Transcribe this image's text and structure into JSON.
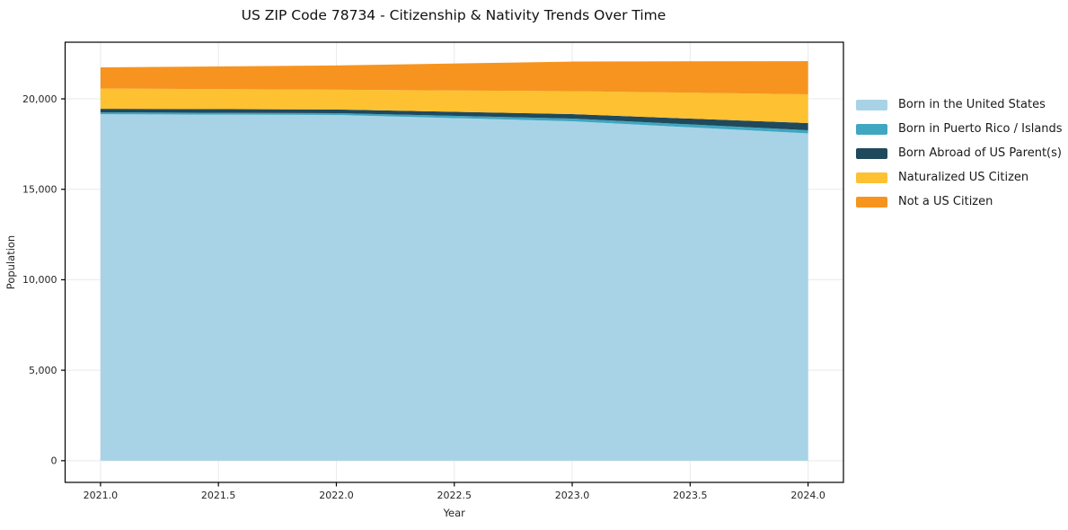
{
  "figure": {
    "title": "US ZIP Code 78734 - Citizenship & Nativity Trends Over Time"
  },
  "chart_data": {
    "type": "area",
    "stacked": true,
    "title": "US ZIP Code 78734 - Citizenship & Nativity Trends Over Time",
    "xlabel": "Year",
    "ylabel": "Population",
    "x": [
      2021,
      2022,
      2023,
      2024
    ],
    "series": [
      {
        "name": "Born in the United States",
        "color": "#a8d3e6",
        "values": [
          19150,
          19110,
          18760,
          18090
        ]
      },
      {
        "name": "Born in Puerto Rico / Islands",
        "color": "#3fa7c1",
        "values": [
          100,
          100,
          150,
          175
        ]
      },
      {
        "name": "Born Abroad of US Parent(s)",
        "color": "#20495c",
        "values": [
          200,
          200,
          245,
          395
        ]
      },
      {
        "name": "Naturalized US Citizen",
        "color": "#fdc132",
        "values": [
          1120,
          1095,
          1270,
          1590
        ]
      },
      {
        "name": "Not a US Citizen",
        "color": "#f7941f",
        "values": [
          1170,
          1340,
          1635,
          1835
        ]
      }
    ],
    "totals": [
      21740,
      21845,
      22060,
      22085
    ],
    "x_ticks": {
      "values": [
        2021.0,
        2021.5,
        2022.0,
        2022.5,
        2023.0,
        2023.5,
        2024.0
      ],
      "labels": [
        "2021.0",
        "2021.5",
        "2022.0",
        "2022.5",
        "2023.0",
        "2023.5",
        "2024.0"
      ]
    },
    "y_ticks": {
      "values": [
        0,
        5000,
        10000,
        15000,
        20000
      ],
      "labels": [
        "0",
        "5,000",
        "10,000",
        "15,000",
        "20,000"
      ]
    },
    "xlim": [
      2020.85,
      2024.15
    ],
    "ylim": [
      -1200,
      23130
    ],
    "grid": true,
    "legend_position": "right",
    "colors": {
      "background": "#ffffff",
      "grid": "#e9e9e9",
      "spine": "#000000",
      "tick_text": "#262626"
    }
  }
}
